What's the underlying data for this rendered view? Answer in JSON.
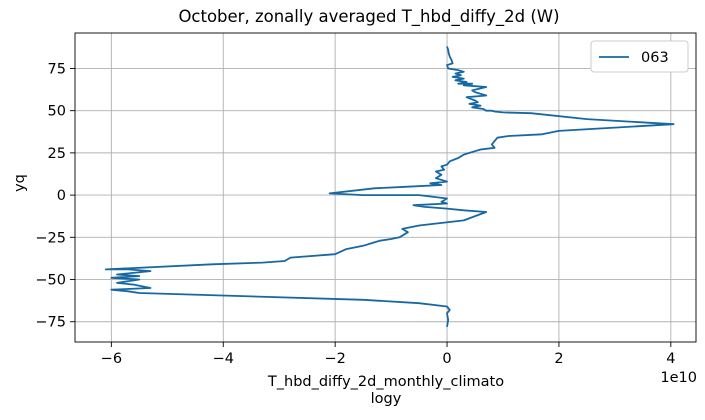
{
  "chart_data": {
    "type": "line",
    "title": "October, zonally averaged T_hbd_diffy_2d (W)",
    "xlabel_line1": "T_hbd_diffy_2d_monthly_climato",
    "xlabel_line2": "logy",
    "ylabel": "yq",
    "x_offset_label": "1e10",
    "xlim": [
      -6.65,
      4.45
    ],
    "ylim": [
      -87,
      96
    ],
    "xticks": [
      -6,
      -4,
      -2,
      0,
      2,
      4
    ],
    "xtick_labels": [
      "−6",
      "−4",
      "−2",
      "0",
      "2",
      "4"
    ],
    "yticks": [
      -75,
      -50,
      -25,
      0,
      25,
      50,
      75
    ],
    "ytick_labels": [
      "−75",
      "−50",
      "−25",
      "0",
      "25",
      "50",
      "75"
    ],
    "grid": true,
    "legend_position": "upper right",
    "colors": {
      "series": "#1668a3",
      "grid": "#b0b0b0",
      "axes": "#000000",
      "background": "#ffffff"
    },
    "series": [
      {
        "name": "063",
        "x": [
          0.0,
          0.02,
          0.03,
          0.05,
          0.08,
          0.1,
          0.0,
          0.02,
          0.2,
          0.3,
          0.15,
          0.25,
          0.1,
          0.3,
          0.15,
          0.35,
          0.2,
          0.45,
          0.3,
          0.7,
          0.45,
          0.5,
          0.7,
          0.35,
          0.5,
          0.55,
          0.4,
          0.6,
          0.45,
          0.65,
          0.7,
          0.8,
          0.85,
          1.0,
          1.5,
          2.5,
          4.05,
          3.0,
          2.0,
          1.7,
          1.1,
          0.9,
          0.8,
          0.85,
          0.6,
          0.5,
          0.4,
          0.3,
          0.25,
          0.2,
          0.05,
          0.0,
          -0.1,
          -0.05,
          -0.2,
          -0.1,
          -0.2,
          0.0,
          -0.3,
          -0.1,
          -0.7,
          -1.3,
          -2.1,
          -1.5,
          -0.5,
          0.0,
          -0.1,
          0.0,
          -0.6,
          -0.4,
          0.0,
          0.3,
          0.7,
          0.3,
          -0.5,
          -0.8,
          -0.7,
          -0.85,
          -1.0,
          -1.2,
          -1.3,
          -1.5,
          -1.8,
          -2.0,
          -2.8,
          -2.9,
          -3.3,
          -4.2,
          -6.1,
          -5.7,
          -5.3,
          -5.9,
          -5.5,
          -6.0,
          -5.5,
          -5.9,
          -5.6,
          -5.3,
          -6.0,
          -5.7,
          -5.5,
          -3.5,
          -1.5,
          -0.5,
          0.0,
          0.05,
          0.0,
          0.02,
          0.0
        ],
        "y": [
          88,
          86,
          84,
          82,
          80,
          78,
          77,
          75,
          74,
          73,
          72,
          71,
          70,
          69,
          68,
          67,
          66,
          66,
          65,
          64,
          62,
          61,
          59,
          58,
          56,
          55,
          54,
          53,
          52,
          51,
          50,
          50,
          49.5,
          49,
          48.5,
          45,
          42,
          40,
          38,
          36,
          35,
          34,
          30,
          28,
          27,
          26,
          25,
          24,
          23,
          22,
          20,
          18,
          17,
          15,
          14,
          12,
          10,
          8,
          7,
          6,
          5,
          4,
          1,
          0,
          0,
          -2,
          -4,
          -5,
          -6,
          -7,
          -8,
          -9,
          -10,
          -15,
          -18,
          -20,
          -22,
          -25,
          -26,
          -27,
          -28,
          -30,
          -32,
          -35,
          -37,
          -39,
          -40,
          -41,
          -44,
          -44,
          -45,
          -47,
          -48,
          -49,
          -50,
          -52,
          -53,
          -55,
          -56,
          -57,
          -58,
          -60,
          -62,
          -64,
          -66,
          -68,
          -70,
          -74,
          -78
        ]
      }
    ]
  }
}
